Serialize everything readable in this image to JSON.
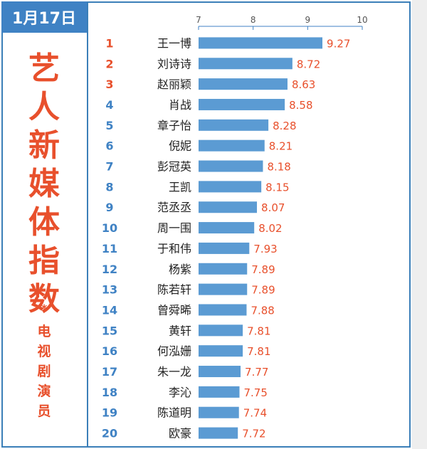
{
  "header": {
    "date": "1月17日"
  },
  "sidebar": {
    "title_chars": [
      "艺",
      "人",
      "新",
      "媒",
      "体",
      "指",
      "数"
    ],
    "star": "*",
    "subtitle_chars": [
      "电",
      "视",
      "剧",
      "演",
      "员"
    ]
  },
  "colors": {
    "bar": "#5b9bd3",
    "value_text": "#e8502c",
    "rank_top3": "#e8502c",
    "rank_other": "#3f82c4",
    "axis": "#3f82c4",
    "name_text": "#222222",
    "tick_text": "#555555"
  },
  "chart_data": {
    "type": "bar",
    "orientation": "horizontal",
    "title": "艺人新媒体指数",
    "subtitle": "电视剧演员",
    "xlim": [
      7,
      10
    ],
    "xticks": [
      "7",
      "8",
      "9",
      "10"
    ],
    "xtick_values": [
      7,
      8,
      9,
      10
    ],
    "grid": false,
    "ranks": [
      "1",
      "2",
      "3",
      "4",
      "5",
      "6",
      "7",
      "8",
      "9",
      "10",
      "11",
      "12",
      "13",
      "14",
      "15",
      "16",
      "17",
      "18",
      "19",
      "20"
    ],
    "categories": [
      "王一博",
      "刘诗诗",
      "赵丽颖",
      "肖战",
      "章子怡",
      "倪妮",
      "彭冠英",
      "王凯",
      "范丞丞",
      "周一围",
      "于和伟",
      "杨紫",
      "陈若轩",
      "曾舜晞",
      "黄轩",
      "何泓姗",
      "朱一龙",
      "李沁",
      "陈道明",
      "欧豪"
    ],
    "values": [
      9.27,
      8.72,
      8.63,
      8.58,
      8.28,
      8.21,
      8.18,
      8.15,
      8.07,
      8.02,
      7.93,
      7.89,
      7.89,
      7.88,
      7.81,
      7.81,
      7.77,
      7.75,
      7.74,
      7.72
    ],
    "value_labels": [
      "9.27",
      "8.72",
      "8.63",
      "8.58",
      "8.28",
      "8.21",
      "8.18",
      "8.15",
      "8.07",
      "8.02",
      "7.93",
      "7.89",
      "7.89",
      "7.88",
      "7.81",
      "7.81",
      "7.77",
      "7.75",
      "7.74",
      "7.72"
    ]
  }
}
